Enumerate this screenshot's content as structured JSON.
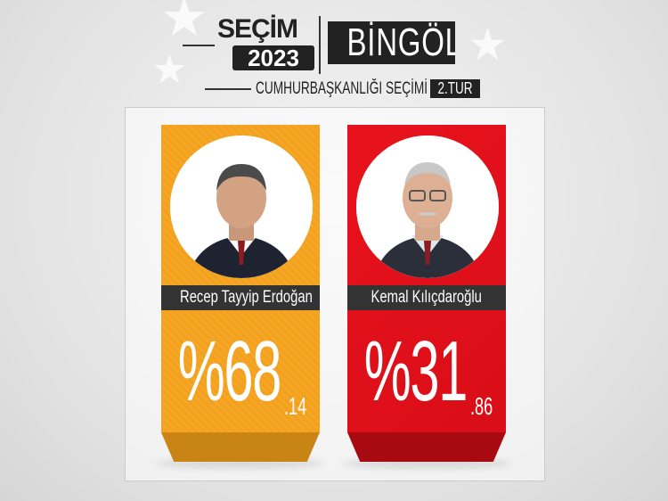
{
  "header": {
    "brand_top": "SEÇİM",
    "brand_year": "2023",
    "city": "BİNGÖL",
    "subtitle": "CUMHURBAŞKANLIĞI SEÇİMİ",
    "round": "2.TUR"
  },
  "colors": {
    "erdogan": "#f5a623",
    "erdogan_dark": "#c98416",
    "kilicdaroglu": "#e3101a",
    "kilicdaroglu_dark": "#a80a12",
    "label_bg": "#333333"
  },
  "candidates": [
    {
      "name": "Recep Tayyip Erdoğan",
      "percent_int": "%68",
      "percent_dec": ".14",
      "value": 68.14
    },
    {
      "name": "Kemal Kılıçdaroğlu",
      "percent_int": "%31",
      "percent_dec": ".86",
      "value": 31.86
    }
  ]
}
